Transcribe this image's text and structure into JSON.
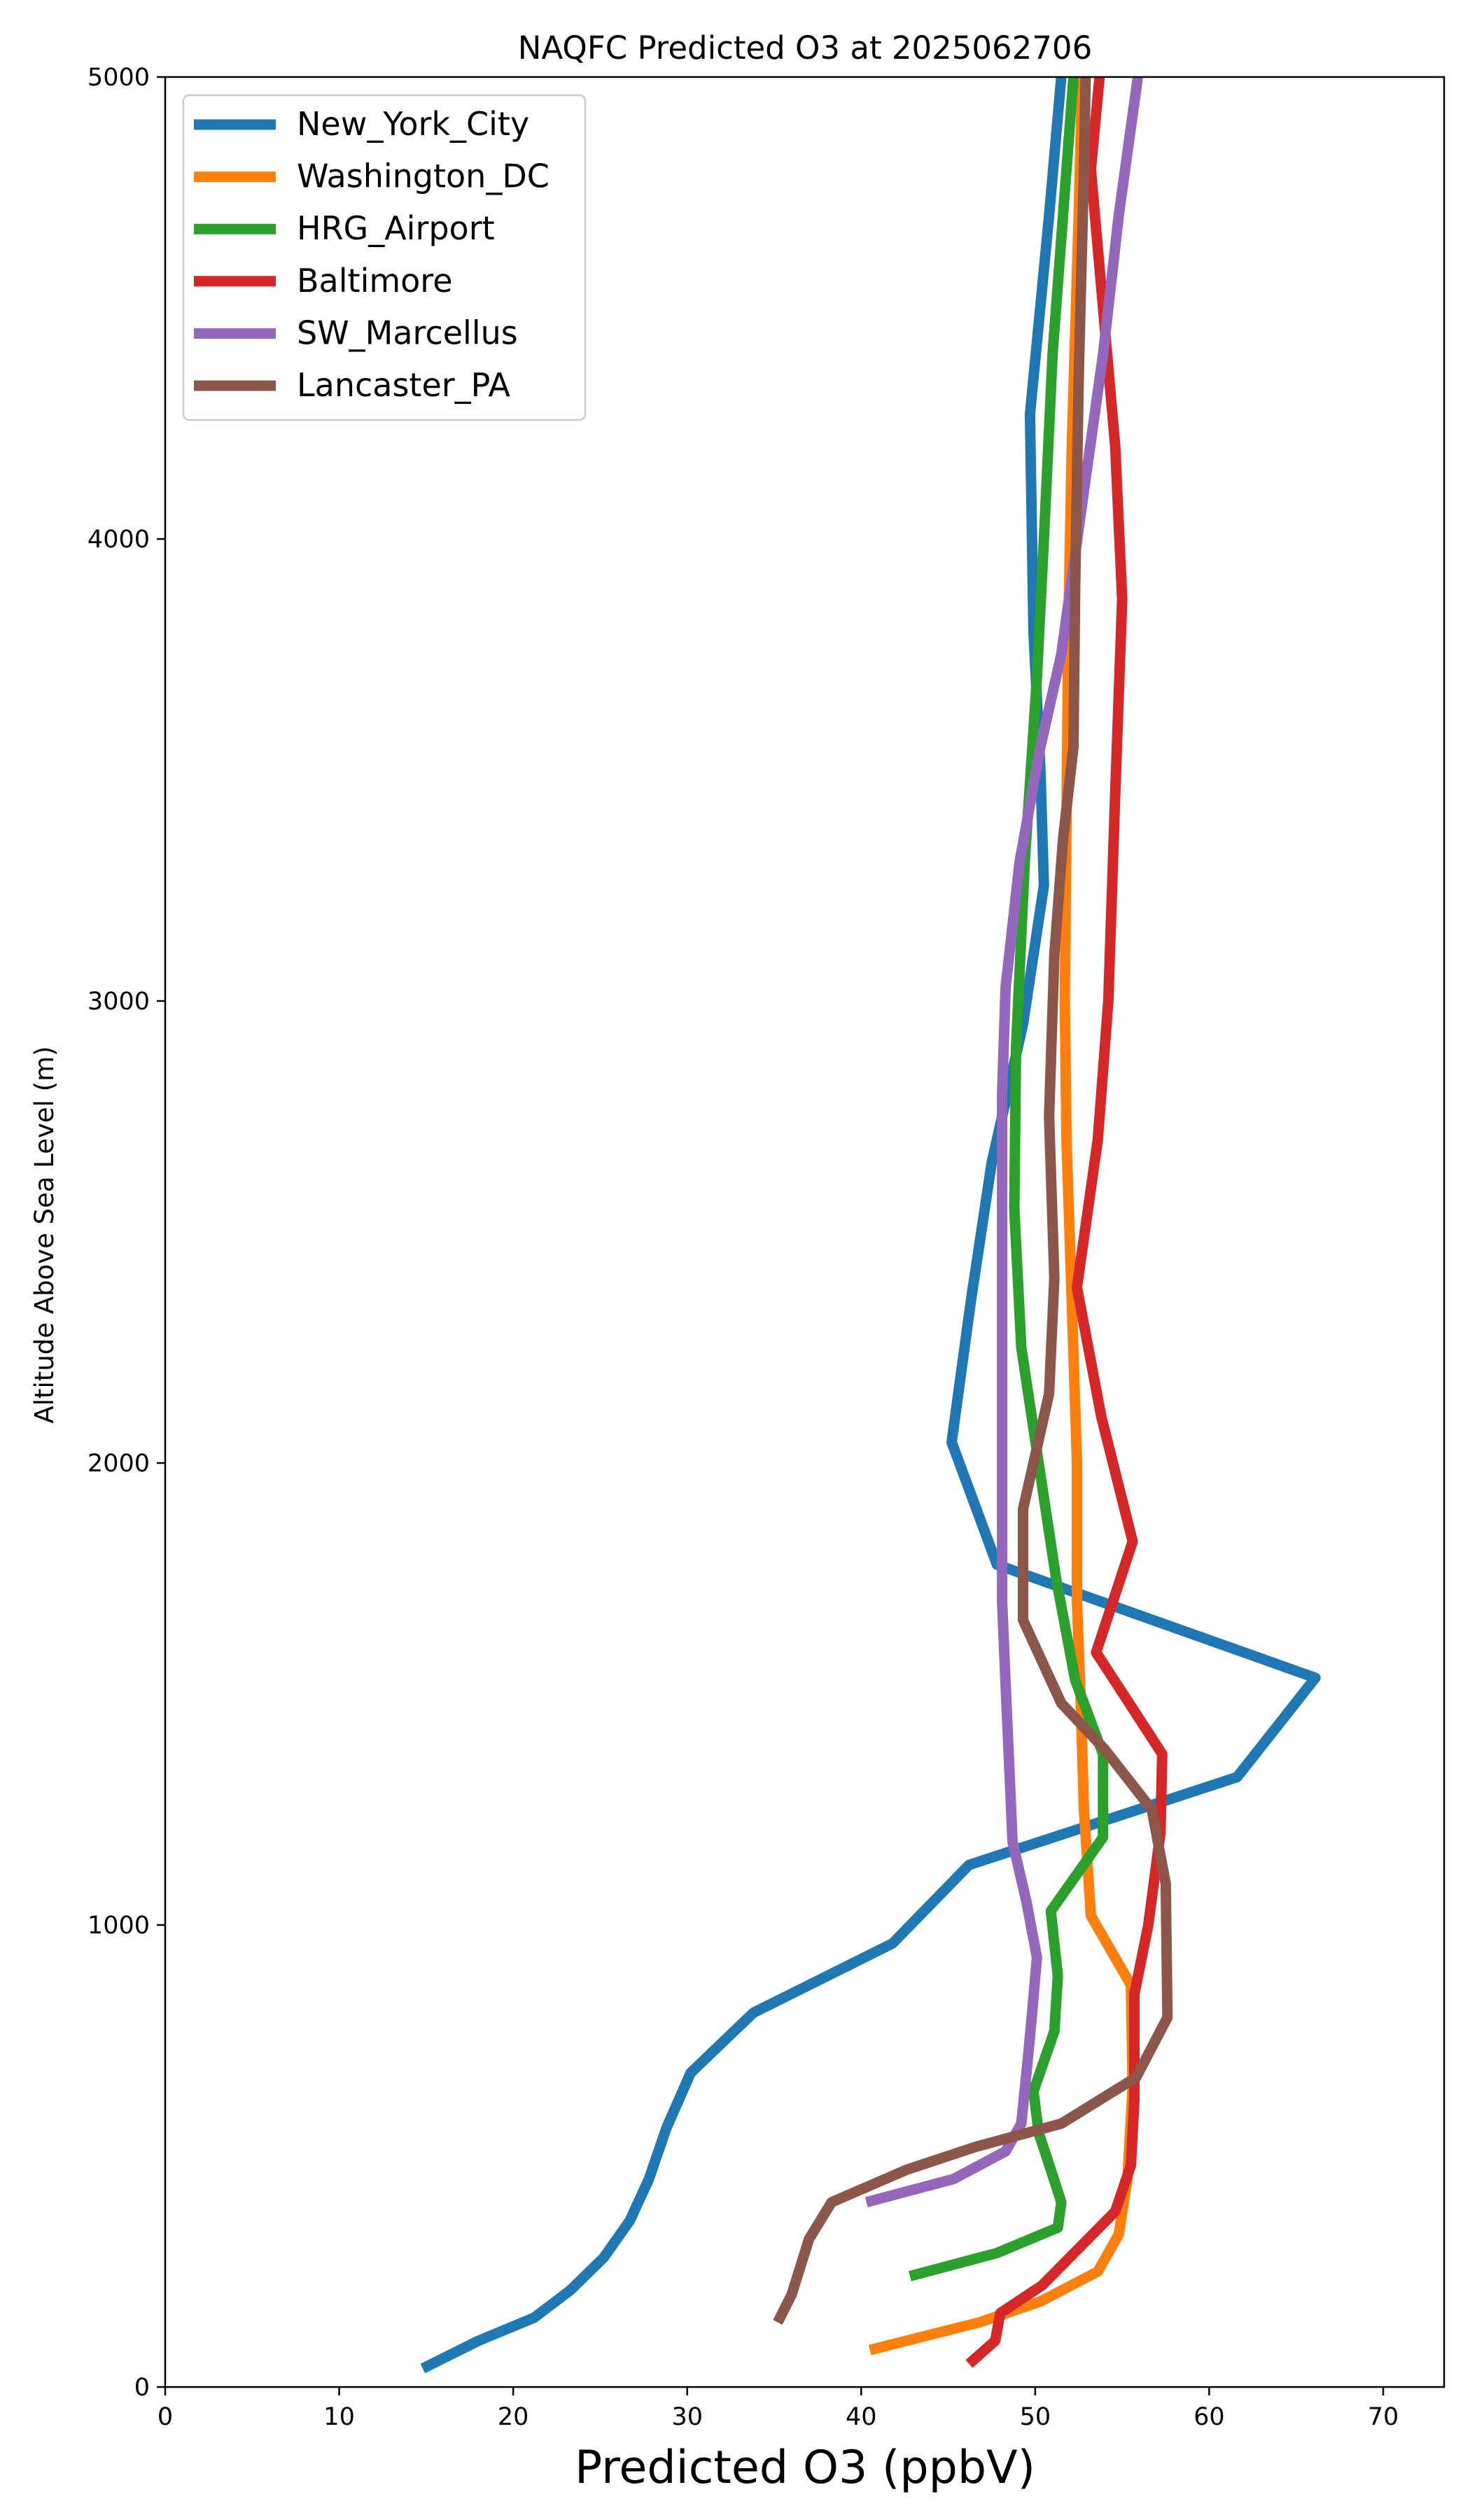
{
  "chart_data": {
    "type": "line",
    "title": "NAQFC Predicted O3 at 2025062706",
    "xlabel": "Predicted O3 (ppbV)",
    "ylabel": "Altitude Above Sea Level (m)",
    "xlim": [
      0,
      73.5
    ],
    "ylim": [
      0,
      5000
    ],
    "x_ticks": [
      0,
      10,
      20,
      30,
      40,
      50,
      60,
      70
    ],
    "x_tick_labels": [
      "0",
      "10",
      "20",
      "30",
      "40",
      "50",
      "60",
      "70"
    ],
    "y_ticks": [
      0,
      1000,
      2000,
      3000,
      4000,
      5000
    ],
    "y_tick_labels": [
      "0",
      "1000",
      "2000",
      "3000",
      "4000",
      "5000"
    ],
    "grid": false,
    "legend_position": "top-left",
    "series": [
      {
        "name": "New_York_City",
        "color": "#1f77b4",
        "points": [
          [
            14.8,
            40
          ],
          [
            18,
            100
          ],
          [
            21.2,
            150
          ],
          [
            23.3,
            210
          ],
          [
            25.2,
            280
          ],
          [
            26.7,
            360
          ],
          [
            27.8,
            450
          ],
          [
            28.8,
            560
          ],
          [
            30.2,
            680
          ],
          [
            33.8,
            810
          ],
          [
            41.8,
            960
          ],
          [
            46.2,
            1130
          ],
          [
            61.6,
            1320
          ],
          [
            66.1,
            1535
          ],
          [
            47.8,
            1780
          ],
          [
            45.2,
            2045
          ],
          [
            46.3,
            2350
          ],
          [
            47.5,
            2650
          ],
          [
            49.3,
            2950
          ],
          [
            50.5,
            3250
          ],
          [
            50.3,
            3500
          ],
          [
            49.9,
            3800
          ],
          [
            49.7,
            4270
          ],
          [
            50.8,
            4700
          ],
          [
            51.5,
            5000
          ]
        ]
      },
      {
        "name": "Washington_DC",
        "color": "#ff7f0e",
        "points": [
          [
            40.5,
            80
          ],
          [
            46.8,
            140
          ],
          [
            50.3,
            185
          ],
          [
            53.6,
            250
          ],
          [
            54.8,
            330
          ],
          [
            55.3,
            450
          ],
          [
            55.6,
            650
          ],
          [
            55.5,
            870
          ],
          [
            53.2,
            1020
          ],
          [
            52.8,
            1250
          ],
          [
            52.6,
            1500
          ],
          [
            52.4,
            1700
          ],
          [
            52.4,
            2000
          ],
          [
            52.1,
            2350
          ],
          [
            51.8,
            2700
          ],
          [
            51.7,
            3000
          ],
          [
            51.8,
            3400
          ],
          [
            51.9,
            3800
          ],
          [
            52.1,
            4200
          ],
          [
            52.5,
            4700
          ],
          [
            52.7,
            5000
          ]
        ]
      },
      {
        "name": "HRG_Airport",
        "color": "#2ca02c",
        "points": [
          [
            42.8,
            240
          ],
          [
            47.8,
            290
          ],
          [
            51.3,
            345
          ],
          [
            51.5,
            400
          ],
          [
            50.9,
            470
          ],
          [
            50.2,
            550
          ],
          [
            49.9,
            640
          ],
          [
            51.1,
            770
          ],
          [
            51.3,
            890
          ],
          [
            50.9,
            1030
          ],
          [
            53.9,
            1190
          ],
          [
            53.9,
            1370
          ],
          [
            52.3,
            1530
          ],
          [
            51.2,
            1750
          ],
          [
            50.2,
            2000
          ],
          [
            49.2,
            2250
          ],
          [
            48.8,
            2550
          ],
          [
            48.9,
            2900
          ],
          [
            49.4,
            3300
          ],
          [
            50.1,
            3700
          ],
          [
            50.5,
            4000
          ],
          [
            51,
            4400
          ],
          [
            51.6,
            4700
          ],
          [
            52.2,
            5000
          ]
        ]
      },
      {
        "name": "Baltimore",
        "color": "#d62728",
        "points": [
          [
            46.2,
            50
          ],
          [
            47.7,
            100
          ],
          [
            48,
            160
          ],
          [
            50.4,
            220
          ],
          [
            52.5,
            300
          ],
          [
            54.6,
            380
          ],
          [
            55.5,
            480
          ],
          [
            55.7,
            620
          ],
          [
            55.7,
            850
          ],
          [
            56.5,
            1000
          ],
          [
            57.2,
            1200
          ],
          [
            57.3,
            1370
          ],
          [
            53.5,
            1590
          ],
          [
            55.6,
            1830
          ],
          [
            53.8,
            2100
          ],
          [
            52.4,
            2380
          ],
          [
            53.6,
            2700
          ],
          [
            54.2,
            3000
          ],
          [
            54.6,
            3450
          ],
          [
            55,
            3870
          ],
          [
            54.6,
            4200
          ],
          [
            53.2,
            4800
          ],
          [
            53.7,
            5000
          ]
        ]
      },
      {
        "name": "SW_Marcellus",
        "color": "#9467bd",
        "points": [
          [
            40.3,
            400
          ],
          [
            45.3,
            450
          ],
          [
            48.3,
            510
          ],
          [
            49.2,
            570
          ],
          [
            49.5,
            680
          ],
          [
            49.8,
            800
          ],
          [
            50.1,
            930
          ],
          [
            49.5,
            1050
          ],
          [
            48.7,
            1180
          ],
          [
            48.5,
            1350
          ],
          [
            48.3,
            1520
          ],
          [
            48.1,
            1700
          ],
          [
            48.1,
            2000
          ],
          [
            48.1,
            2400
          ],
          [
            48.1,
            2800
          ],
          [
            48.3,
            3030
          ],
          [
            49.1,
            3300
          ],
          [
            50.3,
            3550
          ],
          [
            51.5,
            3750
          ],
          [
            52.6,
            4050
          ],
          [
            53.9,
            4400
          ],
          [
            54.8,
            4700
          ],
          [
            55.9,
            5000
          ]
        ]
      },
      {
        "name": "Lancaster_PA",
        "color": "#8c564b",
        "points": [
          [
            35.2,
            140
          ],
          [
            36,
            200
          ],
          [
            37,
            320
          ],
          [
            38.3,
            400
          ],
          [
            42.6,
            470
          ],
          [
            46.6,
            520
          ],
          [
            51.5,
            570
          ],
          [
            55.8,
            670
          ],
          [
            57.6,
            800
          ],
          [
            57.5,
            1090
          ],
          [
            56.7,
            1250
          ],
          [
            54,
            1380
          ],
          [
            51.5,
            1480
          ],
          [
            49.3,
            1660
          ],
          [
            49.3,
            1900
          ],
          [
            50.8,
            2150
          ],
          [
            51.1,
            2400
          ],
          [
            50.8,
            2750
          ],
          [
            51.1,
            3100
          ],
          [
            51.6,
            3350
          ],
          [
            52.2,
            3550
          ],
          [
            52.3,
            3900
          ],
          [
            52.5,
            4350
          ],
          [
            52.8,
            4800
          ],
          [
            52.9,
            5000
          ]
        ]
      }
    ]
  }
}
